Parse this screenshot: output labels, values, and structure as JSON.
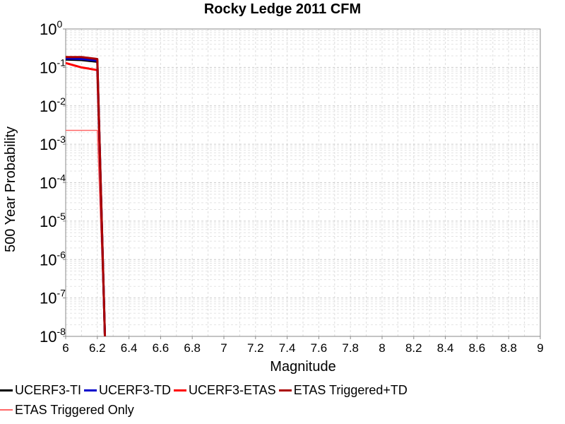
{
  "chart_data": {
    "type": "line",
    "title": "Rocky Ledge 2011 CFM",
    "xlabel": "Magnitude",
    "ylabel": "500 Year Probability",
    "xlim": [
      6,
      9
    ],
    "ylim": [
      1e-08,
      1
    ],
    "y_scale": "log",
    "grid": true,
    "legend_position": "bottom",
    "x_ticks": [
      "6",
      "6.2",
      "6.4",
      "6.6",
      "6.8",
      "7",
      "7.2",
      "7.4",
      "7.6",
      "7.8",
      "8",
      "8.2",
      "8.4",
      "8.6",
      "8.8",
      "9"
    ],
    "y_ticks": [
      {
        "base": "10",
        "exp": "0"
      },
      {
        "base": "10",
        "exp": "-1"
      },
      {
        "base": "10",
        "exp": "-2"
      },
      {
        "base": "10",
        "exp": "-3"
      },
      {
        "base": "10",
        "exp": "-4"
      },
      {
        "base": "10",
        "exp": "-5"
      },
      {
        "base": "10",
        "exp": "-6"
      },
      {
        "base": "10",
        "exp": "-7"
      },
      {
        "base": "10",
        "exp": "-8"
      }
    ],
    "series": [
      {
        "name": "UCERF3-TI",
        "color": "#000000",
        "width": 3,
        "x": [
          6.0,
          6.1,
          6.2,
          6.25
        ],
        "y": [
          0.16,
          0.155,
          0.14,
          5e-09
        ]
      },
      {
        "name": "UCERF3-TD",
        "color": "#0000cc",
        "width": 3,
        "x": [
          6.0,
          6.1,
          6.2,
          6.25
        ],
        "y": [
          0.17,
          0.165,
          0.15,
          5e-09
        ]
      },
      {
        "name": "UCERF3-ETAS",
        "color": "#ff0000",
        "width": 3,
        "x": [
          6.0,
          6.1,
          6.2,
          6.25
        ],
        "y": [
          0.13,
          0.1,
          0.085,
          5e-09
        ]
      },
      {
        "name": "ETAS Triggered+TD",
        "color": "#aa0000",
        "width": 3,
        "x": [
          6.0,
          6.1,
          6.2,
          6.25
        ],
        "y": [
          0.185,
          0.185,
          0.165,
          5e-09
        ]
      },
      {
        "name": "ETAS Triggered Only",
        "color": "#ff6666",
        "width": 1.5,
        "x": [
          6.0,
          6.1,
          6.2,
          6.25
        ],
        "y": [
          0.0023,
          0.0023,
          0.0023,
          5e-09
        ]
      }
    ]
  }
}
